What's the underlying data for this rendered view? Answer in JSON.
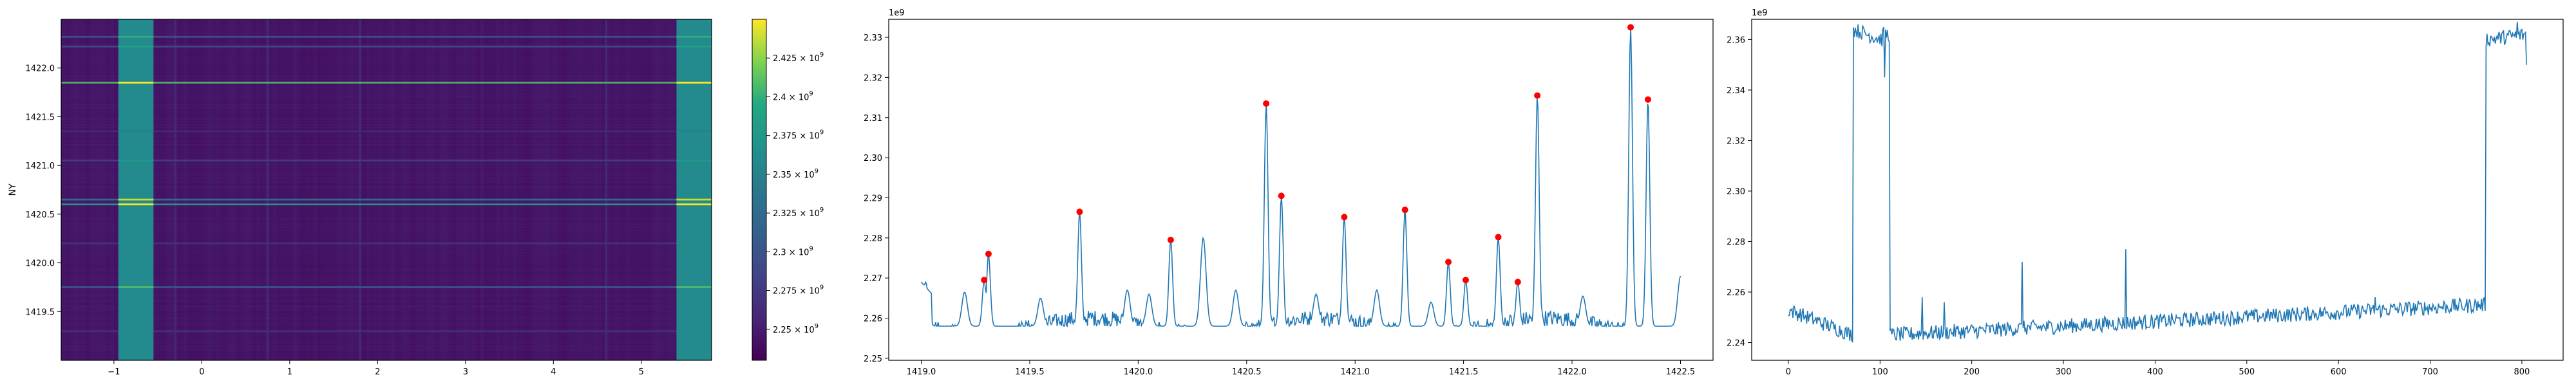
{
  "chart_data": [
    {
      "type": "heatmap",
      "ylabel": "NY",
      "xlim": [
        -1.6,
        5.8
      ],
      "ylim": [
        1419.0,
        1422.5
      ],
      "x_ticks": [
        -1,
        0,
        1,
        2,
        3,
        4,
        5
      ],
      "x_tick_labels": [
        "−1",
        "0",
        "1",
        "2",
        "3",
        "4",
        "5"
      ],
      "y_ticks": [
        1419.5,
        1420.0,
        1420.5,
        1421.0,
        1421.5,
        1422.0
      ],
      "y_tick_labels": [
        "1419.5",
        "1420.0",
        "1420.5",
        "1421.0",
        "1421.5",
        "1422.0"
      ],
      "colormap": "viridis",
      "colorbar": {
        "min": 2230000000.0,
        "max": 2450000000.0,
        "ticks": [
          2250000000.0,
          2275000000.0,
          2300000000.0,
          2325000000.0,
          2350000000.0,
          2375000000.0,
          2400000000.0,
          2425000000.0
        ],
        "tick_labels": [
          {
            "mantissa": "2.25",
            "exp": "9"
          },
          {
            "mantissa": "2.275",
            "exp": "9"
          },
          {
            "mantissa": "2.3",
            "exp": "9"
          },
          {
            "mantissa": "2.325",
            "exp": "9"
          },
          {
            "mantissa": "2.35",
            "exp": "9"
          },
          {
            "mantissa": "2.375",
            "exp": "9"
          },
          {
            "mantissa": "2.4",
            "exp": "9"
          },
          {
            "mantissa": "2.425",
            "exp": "9"
          }
        ]
      },
      "bright_column_bands": [
        {
          "x": [
            -0.95,
            -0.55
          ],
          "value": 2360000000.0
        },
        {
          "x": [
            5.4,
            5.8
          ],
          "value": 2360000000.0
        }
      ],
      "base_value": 2245000000.0,
      "faint_columns_x": [
        -0.3,
        0.75,
        1.8,
        4.6
      ],
      "row_lines_ny": [
        {
          "ny": 1422.32,
          "value": 2300000000.0
        },
        {
          "ny": 1422.22,
          "value": 2290000000.0
        },
        {
          "ny": 1421.85,
          "value": 2410000000.0
        },
        {
          "ny": 1421.35,
          "value": 2260000000.0
        },
        {
          "ny": 1421.05,
          "value": 2280000000.0
        },
        {
          "ny": 1420.65,
          "value": 2340000000.0
        },
        {
          "ny": 1420.6,
          "value": 2380000000.0
        },
        {
          "ny": 1420.2,
          "value": 2270000000.0
        },
        {
          "ny": 1419.75,
          "value": 2310000000.0
        },
        {
          "ny": 1419.3,
          "value": 2265000000.0
        }
      ]
    },
    {
      "type": "line",
      "offset_text": "1e9",
      "xlim": [
        1418.85,
        1422.65
      ],
      "ylim": [
        2.2495,
        2.3345
      ],
      "x_ticks": [
        1419.0,
        1419.5,
        1420.0,
        1420.5,
        1421.0,
        1421.5,
        1422.0,
        1422.5
      ],
      "x_tick_labels": [
        "1419.0",
        "1419.5",
        "1420.0",
        "1420.5",
        "1421.0",
        "1421.5",
        "1422.0",
        "1422.5"
      ],
      "y_ticks": [
        2.25,
        2.26,
        2.27,
        2.28,
        2.29,
        2.3,
        2.31,
        2.32,
        2.33
      ],
      "y_tick_labels": [
        "2.25",
        "2.26",
        "2.27",
        "2.28",
        "2.29",
        "2.30",
        "2.31",
        "2.32",
        "2.33"
      ],
      "x_range": [
        1419.0,
        1422.5
      ],
      "baseline": 2.258,
      "line_color": "#1f77b4",
      "marker_color": "#ff0000",
      "peaks": [
        {
          "x": 1419.29,
          "y": 2.2695
        },
        {
          "x": 1419.31,
          "y": 2.276
        },
        {
          "x": 1419.73,
          "y": 2.2865
        },
        {
          "x": 1420.15,
          "y": 2.2795
        },
        {
          "x": 1420.59,
          "y": 2.3135
        },
        {
          "x": 1420.66,
          "y": 2.2905
        },
        {
          "x": 1420.95,
          "y": 2.2852
        },
        {
          "x": 1421.23,
          "y": 2.287
        },
        {
          "x": 1421.43,
          "y": 2.274
        },
        {
          "x": 1421.51,
          "y": 2.2695
        },
        {
          "x": 1421.66,
          "y": 2.2802
        },
        {
          "x": 1421.75,
          "y": 2.269
        },
        {
          "x": 1421.84,
          "y": 2.3155
        },
        {
          "x": 1422.27,
          "y": 2.3325
        },
        {
          "x": 1422.35,
          "y": 2.3145
        }
      ],
      "unmarked_bumps": [
        {
          "x": 1419.02,
          "y": 2.269
        },
        {
          "x": 1419.2,
          "y": 2.2665
        },
        {
          "x": 1419.55,
          "y": 2.265
        },
        {
          "x": 1419.95,
          "y": 2.267
        },
        {
          "x": 1420.05,
          "y": 2.266
        },
        {
          "x": 1420.3,
          "y": 2.28
        },
        {
          "x": 1420.45,
          "y": 2.267
        },
        {
          "x": 1420.82,
          "y": 2.266
        },
        {
          "x": 1421.1,
          "y": 2.267
        },
        {
          "x": 1421.35,
          "y": 2.264
        },
        {
          "x": 1422.05,
          "y": 2.2655
        },
        {
          "x": 1422.5,
          "y": 2.2705
        }
      ]
    },
    {
      "type": "line",
      "offset_text": "1e9",
      "xlim": [
        -40,
        845
      ],
      "ylim": [
        2.233,
        2.368
      ],
      "x_ticks": [
        0,
        100,
        200,
        300,
        400,
        500,
        600,
        700,
        800
      ],
      "x_tick_labels": [
        "0",
        "100",
        "200",
        "300",
        "400",
        "500",
        "600",
        "700",
        "800"
      ],
      "y_ticks": [
        2.24,
        2.26,
        2.28,
        2.3,
        2.32,
        2.34,
        2.36
      ],
      "y_tick_labels": [
        "2.24",
        "2.26",
        "2.28",
        "2.30",
        "2.32",
        "2.34",
        "2.36"
      ],
      "line_color": "#1f77b4",
      "segments": [
        {
          "x": [
            0,
            70
          ],
          "y_start": 2.253,
          "y_end": 2.243
        },
        {
          "x": [
            71,
            102
          ],
          "y_start": 2.364,
          "y_end": 2.36
        },
        {
          "x": [
            103,
            110
          ],
          "y_start": 2.362,
          "y_end": 2.362
        },
        {
          "x": [
            111,
            760
          ],
          "y_start": 2.243,
          "y_end": 2.255
        },
        {
          "x": [
            761,
            805
          ],
          "y_start": 2.36,
          "y_end": 2.362
        }
      ],
      "spikes": [
        {
          "x": 105,
          "y": 2.345
        },
        {
          "x": 255,
          "y": 2.272
        },
        {
          "x": 368,
          "y": 2.277
        },
        {
          "x": 146,
          "y": 2.258
        },
        {
          "x": 170,
          "y": 2.256
        },
        {
          "x": 640,
          "y": 2.258
        },
        {
          "x": 795,
          "y": 2.367
        },
        {
          "x": 805,
          "y": 2.35
        }
      ]
    }
  ]
}
